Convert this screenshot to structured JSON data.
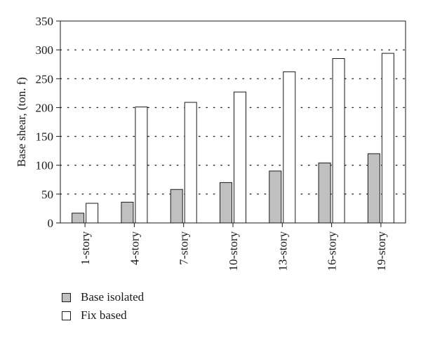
{
  "chart_data": {
    "type": "bar",
    "title": "",
    "xlabel": "",
    "ylabel": "Base shear, (ton. f)",
    "categories": [
      "1-story",
      "4-story",
      "7-story",
      "10-story",
      "13-story",
      "16-story",
      "19-story"
    ],
    "series": [
      {
        "name": "Base isolated",
        "color": "#c0c0c0",
        "values": [
          17,
          36,
          58,
          70,
          90,
          104,
          120
        ]
      },
      {
        "name": "Fix based",
        "color": "#ffffff",
        "values": [
          34,
          201,
          209,
          227,
          262,
          285,
          294
        ]
      }
    ],
    "ylim": [
      0,
      350
    ],
    "yticks": [
      0,
      50,
      100,
      150,
      200,
      250,
      300,
      350
    ],
    "grid": true,
    "legend_position": "bottom-left"
  }
}
